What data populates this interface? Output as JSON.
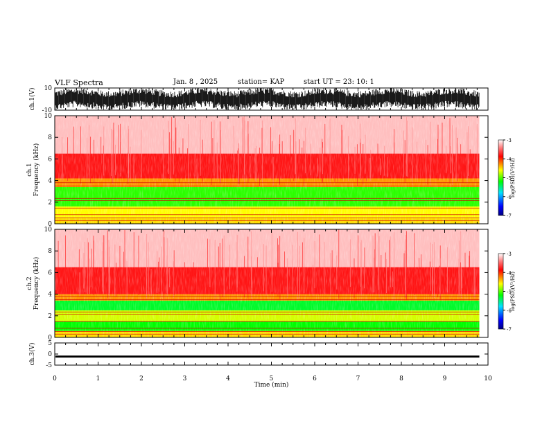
{
  "header": {
    "title": "VLF Spectra",
    "date": "Jan. 8 , 2025",
    "station": "station= KAP",
    "start": "start UT =   23: 10: 1"
  },
  "chart_data": [
    {
      "type": "line",
      "name": "ch1-waveform",
      "ylabel": "ch.1(V)",
      "ylim": [
        -10,
        10
      ],
      "ytick_labels": [
        "10",
        "-10"
      ],
      "xlim": [
        0,
        10
      ],
      "data_extent_min": 9.8,
      "envelope_min": [
        -3,
        -9
      ],
      "envelope_max": [
        3,
        9
      ]
    },
    {
      "type": "heatmap",
      "name": "ch1-spectrogram",
      "ylabel": "ch.1 Frequency (kHz)",
      "ylim": [
        0,
        10
      ],
      "ytick_labels": [
        "0",
        "2",
        "4",
        "6",
        "8",
        "10"
      ],
      "xlim": [
        0,
        10
      ],
      "data_extent_min": 9.8,
      "bands_khz": [
        {
          "from": 0,
          "to": 0.6,
          "log_psd": -4.5
        },
        {
          "from": 0.6,
          "to": 1.6,
          "log_psd": -4.6
        },
        {
          "from": 1.6,
          "to": 3.4,
          "log_psd": -5.1
        },
        {
          "from": 3.4,
          "to": 4.2,
          "log_psd": -4.3
        },
        {
          "from": 4.2,
          "to": 6.5,
          "log_psd": -3.8
        },
        {
          "from": 6.5,
          "to": 10,
          "log_psd": -3.2
        }
      ],
      "colorbar": {
        "label": "log(PSD)(V²/Hz)",
        "min": -7,
        "max": -3,
        "tick_labels": [
          "-3",
          "-4",
          "-5",
          "-6",
          "-7"
        ]
      }
    },
    {
      "type": "heatmap",
      "name": "ch2-spectrogram",
      "ylabel": "ch.2 Frequency (kHz)",
      "ylim": [
        0,
        10
      ],
      "ytick_labels": [
        "0",
        "2",
        "4",
        "6",
        "8",
        "10"
      ],
      "xlim": [
        0,
        10
      ],
      "data_extent_min": 9.8,
      "bands_khz": [
        {
          "from": 0,
          "to": 0.6,
          "log_psd": -4.5
        },
        {
          "from": 0.6,
          "to": 1.5,
          "log_psd": -5.2
        },
        {
          "from": 1.5,
          "to": 2.5,
          "log_psd": -4.7
        },
        {
          "from": 2.5,
          "to": 3.4,
          "log_psd": -5.3
        },
        {
          "from": 3.4,
          "to": 4.0,
          "log_psd": -4.3
        },
        {
          "from": 4.0,
          "to": 6.5,
          "log_psd": -3.8
        },
        {
          "from": 6.5,
          "to": 10,
          "log_psd": -3.2
        }
      ],
      "colorbar": {
        "label": "log(PSD)(V²/Hz)",
        "min": -7,
        "max": -3,
        "tick_labels": [
          "-3",
          "-4",
          "-5",
          "-6",
          "-7"
        ]
      }
    },
    {
      "type": "line",
      "name": "ch3-waveform",
      "ylabel": "ch.3(V)",
      "ylim": [
        -5,
        5
      ],
      "ytick_labels": [
        "5",
        "0",
        "-5"
      ],
      "xlim": [
        0,
        10
      ],
      "data_extent_min": 9.8,
      "band_v": [
        -1.6,
        -0.7
      ]
    }
  ],
  "xaxis": {
    "label": "Time (min)",
    "tick_labels": [
      "0",
      "1",
      "2",
      "3",
      "4",
      "5",
      "6",
      "7",
      "8",
      "9",
      "10"
    ]
  },
  "colors": {
    "waveform": "#000000",
    "colormap": [
      "#000080",
      "#0000ff",
      "#00e0ff",
      "#00ff00",
      "#ffff00",
      "#ff0000",
      "#ffffff"
    ]
  }
}
